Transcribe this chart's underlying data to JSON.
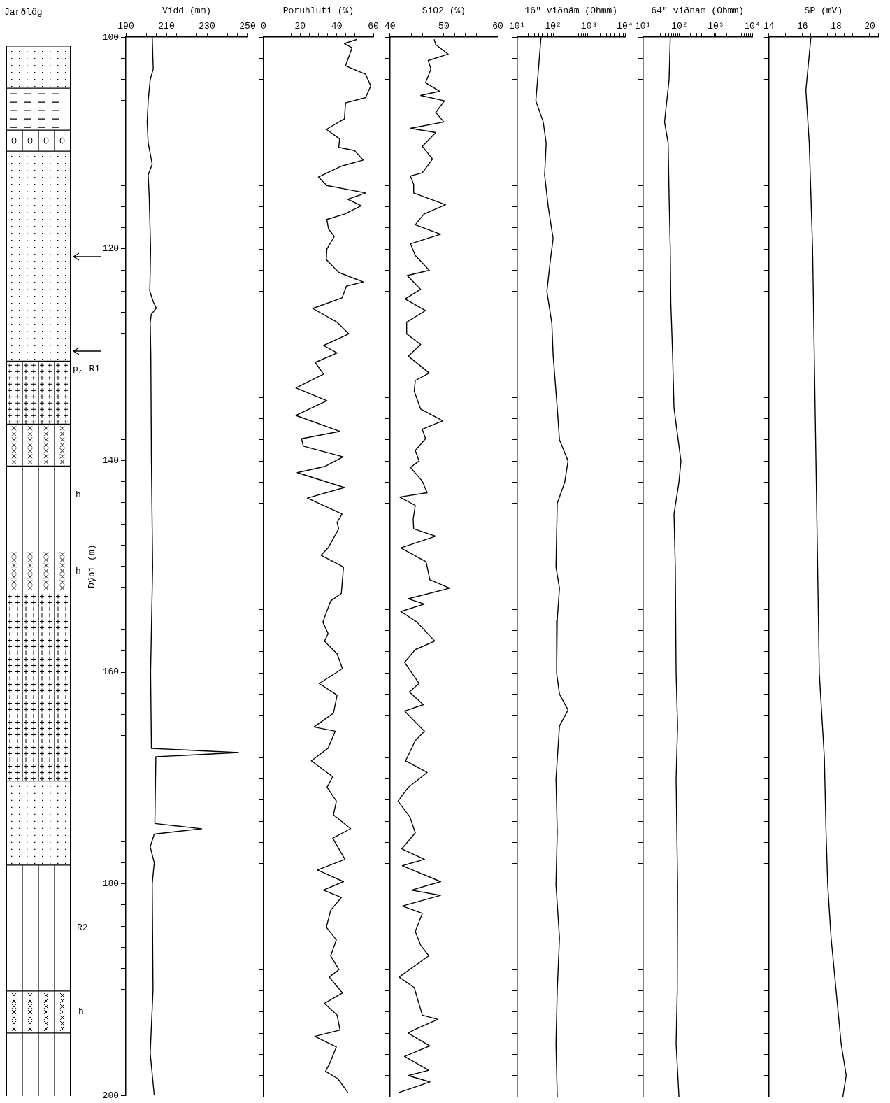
{
  "chart_data": [
    {
      "type": "other",
      "title": "Jarðlög",
      "annotations": [
        "p, R1",
        "h",
        "h",
        "R2",
        "h"
      ]
    },
    {
      "type": "line",
      "xlabel": "Vídd (mm)",
      "ylabel": "Dýpi (m)",
      "color": "#000000",
      "values": [
        100,
        103,
        104,
        106,
        108,
        110,
        112,
        113,
        115,
        120,
        124,
        125,
        125.6,
        126.2,
        127,
        130,
        140,
        150,
        160,
        167.2,
        167.6,
        168,
        174.3,
        174.8,
        175.3,
        176.5,
        178,
        180,
        190,
        196,
        200
      ],
      "x": [
        203,
        203.5,
        202,
        201,
        200.5,
        201,
        203,
        201,
        201.5,
        202.2,
        201.8,
        203.5,
        205,
        202.5,
        202,
        202.3,
        202.6,
        203.2,
        202.2,
        202.6,
        245.6,
        204.8,
        204.3,
        227.4,
        204,
        202,
        204,
        203,
        203.4,
        202,
        204
      ],
      "xlim": [
        190,
        250
      ],
      "xticks": [
        190,
        {
          "value": 195,
          "label": null
        },
        {
          "value": 200,
          "label": null
        },
        {
          "value": 205,
          "label": null
        },
        210,
        {
          "value": 215,
          "label": null
        },
        {
          "value": 220,
          "label": null
        },
        {
          "value": 225,
          "label": null
        },
        230,
        {
          "value": 235,
          "label": null
        },
        {
          "value": 240,
          "label": null
        },
        {
          "value": 245,
          "label": null
        },
        250
      ],
      "ylim": [
        200,
        100
      ],
      "yticks": [
        100,
        {
          "value": 102,
          "label": null
        },
        {
          "value": 104,
          "label": null
        },
        {
          "value": 106,
          "label": null
        },
        {
          "value": 108,
          "label": null
        },
        {
          "value": 110,
          "label": null
        },
        {
          "value": 112,
          "label": null
        },
        {
          "value": 114,
          "label": null
        },
        {
          "value": 116,
          "label": null
        },
        {
          "value": 118,
          "label": null
        },
        120,
        {
          "value": 122,
          "label": null
        },
        {
          "value": 124,
          "label": null
        },
        {
          "value": 126,
          "label": null
        },
        {
          "value": 128,
          "label": null
        },
        {
          "value": 130,
          "label": null
        },
        {
          "value": 132,
          "label": null
        },
        {
          "value": 134,
          "label": null
        },
        {
          "value": 136,
          "label": null
        },
        {
          "value": 138,
          "label": null
        },
        140,
        {
          "value": 142,
          "label": null
        },
        {
          "value": 144,
          "label": null
        },
        {
          "value": 146,
          "label": null
        },
        {
          "value": 148,
          "label": null
        },
        {
          "value": 150,
          "label": null
        },
        {
          "value": 152,
          "label": null
        },
        {
          "value": 154,
          "label": null
        },
        {
          "value": 156,
          "label": null
        },
        {
          "value": 158,
          "label": null
        },
        160,
        {
          "value": 162,
          "label": null
        },
        {
          "value": 164,
          "label": null
        },
        {
          "value": 166,
          "label": null
        },
        {
          "value": 168,
          "label": null
        },
        {
          "value": 170,
          "label": null
        },
        {
          "value": 172,
          "label": null
        },
        {
          "value": 174,
          "label": null
        },
        {
          "value": 176,
          "label": null
        },
        {
          "value": 178,
          "label": null
        },
        180,
        {
          "value": 182,
          "label": null
        },
        {
          "value": 184,
          "label": null
        },
        {
          "value": 186,
          "label": null
        },
        {
          "value": 188,
          "label": null
        },
        {
          "value": 190,
          "label": null
        },
        {
          "value": 192,
          "label": null
        },
        {
          "value": 194,
          "label": null
        },
        {
          "value": 196,
          "label": null
        },
        {
          "value": 198,
          "label": null
        },
        200
      ]
    },
    {
      "type": "line",
      "xlabel": "Poruhluti (%)",
      "color": "#000000",
      "tick_labels": "x",
      "values": [
        100.2,
        100.6,
        101,
        102.7,
        103.5,
        104.6,
        105.7,
        106.2,
        107.7,
        108.7,
        109.6,
        110.4,
        110.7,
        111.6,
        112.2,
        113.2,
        114,
        114.7,
        115.3,
        115.9,
        116.7,
        117.2,
        118.1,
        118.8,
        120,
        121,
        122.2,
        123.1,
        123.5,
        124.6,
        125.6,
        126.9,
        128,
        129.1,
        129.8,
        130.7,
        131.8,
        133.1,
        134.3,
        135.7,
        137.2,
        137.9,
        138.6,
        139.6,
        140.5,
        141.1,
        142.5,
        143.5,
        145,
        145.8,
        146.4,
        148.2,
        148.9,
        150,
        152.5,
        153.2,
        155.2,
        156.3,
        157,
        158.2,
        159.6,
        161,
        162.1,
        163.8,
        165.1,
        165.5,
        167.1,
        168.3,
        169.8,
        170.8,
        172.1,
        173.4,
        174.7,
        175.6,
        177.6,
        178.6,
        179.7,
        180.5,
        181.2,
        182.4,
        184,
        185.2,
        186.7,
        188,
        188.7,
        190.2,
        191.2,
        192.3,
        193.7,
        194.3,
        195.3,
        196.8,
        197.6,
        198.3,
        199.6
      ],
      "x": [
        51.2,
        44.2,
        48.4,
        44.8,
        55.8,
        58.6,
        55.8,
        44.8,
        44.2,
        34.3,
        41.6,
        41.1,
        49.7,
        54.5,
        42,
        30,
        34.6,
        55.8,
        46,
        53.4,
        44.2,
        34.6,
        35.5,
        38.7,
        34.6,
        34.3,
        41.1,
        54.5,
        45.3,
        42.9,
        26.9,
        40.2,
        46.6,
        32.8,
        40.2,
        28.2,
        32.8,
        17.7,
        34.6,
        17.7,
        41.6,
        20.8,
        21.7,
        43.5,
        33.7,
        18.4,
        44.2,
        23.9,
        42.9,
        40.2,
        41.1,
        35.3,
        31.4,
        43.7,
        42.5,
        36.7,
        32.4,
        35.3,
        33.3,
        40.2,
        43.1,
        30.4,
        40.2,
        38.2,
        27.5,
        39.2,
        35.3,
        26.1,
        37.8,
        34.7,
        39.8,
        38.2,
        47.6,
        37.8,
        44.5,
        29.4,
        43.7,
        32.7,
        42.5,
        36.7,
        34.3,
        39.8,
        36.7,
        41.2,
        35.9,
        43.1,
        33.3,
        40.2,
        41.8,
        28,
        39.8,
        36.3,
        33.9,
        40.6,
        46.1
      ],
      "xlim": [
        0,
        60
      ],
      "xticks": [
        0,
        {
          "value": 5,
          "label": null
        },
        {
          "value": 10,
          "label": null
        },
        {
          "value": 15,
          "label": null
        },
        20,
        {
          "value": 25,
          "label": null
        },
        {
          "value": 30,
          "label": null
        },
        {
          "value": 35,
          "label": null
        },
        40,
        {
          "value": 45,
          "label": null
        },
        {
          "value": 50,
          "label": null
        },
        {
          "value": 55,
          "label": null
        },
        60
      ],
      "ylim": [
        200,
        100
      ],
      "yticks": [
        100,
        {
          "value": 102,
          "label": null
        },
        {
          "value": 104,
          "label": null
        },
        {
          "value": 106,
          "label": null
        },
        {
          "value": 108,
          "label": null
        },
        {
          "value": 110,
          "label": null
        },
        {
          "value": 112,
          "label": null
        },
        {
          "value": 114,
          "label": null
        },
        {
          "value": 116,
          "label": null
        },
        {
          "value": 118,
          "label": null
        },
        120,
        {
          "value": 122,
          "label": null
        },
        {
          "value": 124,
          "label": null
        },
        {
          "value": 126,
          "label": null
        },
        {
          "value": 128,
          "label": null
        },
        {
          "value": 130,
          "label": null
        },
        {
          "value": 132,
          "label": null
        },
        {
          "value": 134,
          "label": null
        },
        {
          "value": 136,
          "label": null
        },
        {
          "value": 138,
          "label": null
        },
        140,
        {
          "value": 142,
          "label": null
        },
        {
          "value": 144,
          "label": null
        },
        {
          "value": 146,
          "label": null
        },
        {
          "value": 148,
          "label": null
        },
        {
          "value": 150,
          "label": null
        },
        {
          "value": 152,
          "label": null
        },
        {
          "value": 154,
          "label": null
        },
        {
          "value": 156,
          "label": null
        },
        {
          "value": 158,
          "label": null
        },
        160,
        {
          "value": 162,
          "label": null
        },
        {
          "value": 164,
          "label": null
        },
        {
          "value": 166,
          "label": null
        },
        {
          "value": 168,
          "label": null
        },
        {
          "value": 170,
          "label": null
        },
        {
          "value": 172,
          "label": null
        },
        {
          "value": 174,
          "label": null
        },
        {
          "value": 176,
          "label": null
        },
        {
          "value": 178,
          "label": null
        },
        180,
        {
          "value": 182,
          "label": null
        },
        {
          "value": 184,
          "label": null
        },
        {
          "value": 186,
          "label": null
        },
        {
          "value": 188,
          "label": null
        },
        {
          "value": 190,
          "label": null
        },
        {
          "value": 192,
          "label": null
        },
        {
          "value": 194,
          "label": null
        },
        {
          "value": 196,
          "label": null
        },
        {
          "value": 198,
          "label": null
        },
        200
      ]
    },
    {
      "type": "line",
      "xlabel": "SiO2 (%)",
      "color": "#000000",
      "tick_labels": "x",
      "values": [
        100.2,
        100.7,
        101.6,
        102.2,
        103,
        104.3,
        105.1,
        105.5,
        106,
        107.1,
        108,
        108.6,
        109,
        110.3,
        111.5,
        112.8,
        113.1,
        113.9,
        114.7,
        115.8,
        116.7,
        117.7,
        118.6,
        119.5,
        120.6,
        122,
        122.5,
        123.8,
        124.7,
        125.8,
        126.9,
        128,
        129,
        130.1,
        131.7,
        132.4,
        133.4,
        135.1,
        136.2,
        137,
        137.9,
        139,
        140,
        140.6,
        141.9,
        143,
        143.4,
        144.2,
        145.5,
        146.4,
        147.1,
        148.2,
        149.5,
        151.2,
        152,
        153,
        153.5,
        154.2,
        155.2,
        157,
        157.8,
        159,
        161,
        161.8,
        163,
        163.6,
        165.5,
        166.4,
        168.3,
        169.4,
        170.8,
        172.1,
        173.6,
        175.1,
        176.6,
        177.6,
        178.2,
        179.7,
        180.5,
        181,
        182,
        182.7,
        184.4,
        185.7,
        186.7,
        188.7,
        189.7,
        192.3,
        192.7,
        193.7,
        194,
        195.2,
        196.2,
        197.5,
        198,
        198.6,
        199.6
      ],
      "x": [
        48.2,
        48.5,
        50.8,
        47.1,
        47.6,
        46.6,
        49.2,
        45.7,
        50.1,
        48.5,
        50,
        43.8,
        48.5,
        46,
        47.9,
        46,
        43.8,
        44.4,
        44.4,
        50.3,
        46.3,
        44.7,
        49.4,
        43.8,
        44.7,
        47.3,
        43.2,
        45.7,
        42.8,
        46.6,
        43.1,
        43.1,
        45.7,
        43.4,
        47.3,
        44.7,
        44.5,
        45.7,
        49.8,
        46,
        46.6,
        44.7,
        45.4,
        43.8,
        46,
        46.9,
        41.8,
        44.7,
        44.3,
        44.4,
        48.5,
        42,
        46.7,
        47.4,
        51.1,
        43.4,
        46.4,
        42,
        45,
        48.3,
        44.7,
        42.7,
        45.4,
        43.6,
        46.2,
        42.7,
        46.4,
        44.7,
        42.9,
        46.9,
        43.4,
        41.5,
        43.7,
        44.7,
        42.2,
        46.4,
        42.3,
        49.4,
        44,
        49.4,
        42.3,
        46,
        44.7,
        45.7,
        47.2,
        41.7,
        44.5,
        46,
        48.9,
        44.4,
        43.4,
        47.4,
        42.7,
        47.2,
        43.4,
        47.4,
        41.7
      ],
      "xlim": [
        40,
        60
      ],
      "xticks": [
        40,
        {
          "value": 42,
          "label": null
        },
        {
          "value": 44,
          "label": null
        },
        {
          "value": 46,
          "label": null
        },
        {
          "value": 48,
          "label": null
        },
        50,
        {
          "value": 52,
          "label": null
        },
        {
          "value": 54,
          "label": null
        },
        {
          "value": 56,
          "label": null
        },
        {
          "value": 58,
          "label": null
        },
        60
      ],
      "ylim": [
        200,
        100
      ],
      "yticks": [
        100,
        {
          "value": 102,
          "label": null
        },
        {
          "value": 104,
          "label": null
        },
        {
          "value": 106,
          "label": null
        },
        {
          "value": 108,
          "label": null
        },
        {
          "value": 110,
          "label": null
        },
        {
          "value": 112,
          "label": null
        },
        {
          "value": 114,
          "label": null
        },
        {
          "value": 116,
          "label": null
        },
        {
          "value": 118,
          "label": null
        },
        120,
        {
          "value": 122,
          "label": null
        },
        {
          "value": 124,
          "label": null
        },
        {
          "value": 126,
          "label": null
        },
        {
          "value": 128,
          "label": null
        },
        {
          "value": 130,
          "label": null
        },
        {
          "value": 132,
          "label": null
        },
        {
          "value": 134,
          "label": null
        },
        {
          "value": 136,
          "label": null
        },
        {
          "value": 138,
          "label": null
        },
        140,
        {
          "value": 142,
          "label": null
        },
        {
          "value": 144,
          "label": null
        },
        {
          "value": 146,
          "label": null
        },
        {
          "value": 148,
          "label": null
        },
        {
          "value": 150,
          "label": null
        },
        {
          "value": 152,
          "label": null
        },
        {
          "value": 154,
          "label": null
        },
        {
          "value": 156,
          "label": null
        },
        {
          "value": 158,
          "label": null
        },
        160,
        {
          "value": 162,
          "label": null
        },
        {
          "value": 164,
          "label": null
        },
        {
          "value": 166,
          "label": null
        },
        {
          "value": 168,
          "label": null
        },
        {
          "value": 170,
          "label": null
        },
        {
          "value": 172,
          "label": null
        },
        {
          "value": 174,
          "label": null
        },
        {
          "value": 176,
          "label": null
        },
        {
          "value": 178,
          "label": null
        },
        180,
        {
          "value": 182,
          "label": null
        },
        {
          "value": 184,
          "label": null
        },
        {
          "value": 186,
          "label": null
        },
        {
          "value": 188,
          "label": null
        },
        {
          "value": 190,
          "label": null
        },
        {
          "value": 192,
          "label": null
        },
        {
          "value": 194,
          "label": null
        },
        {
          "value": 196,
          "label": null
        },
        {
          "value": 198,
          "label": null
        },
        200
      ]
    },
    {
      "type": "line",
      "xlabel": "16\" viðnám (Ohmm)",
      "color": "#000000",
      "tick_labels": "x",
      "log": "x",
      "values": [
        100,
        104,
        106,
        108,
        110,
        113,
        116,
        119,
        121,
        124,
        127,
        130,
        135,
        138,
        140,
        142,
        144,
        150,
        152,
        155,
        160,
        162,
        163.5,
        165,
        170,
        175,
        180,
        185,
        190,
        195,
        200
      ],
      "x": [
        46,
        37,
        33,
        53,
        64,
        58,
        73,
        100,
        84,
        67,
        92,
        100,
        130,
        150,
        260,
        210,
        130,
        120,
        150,
        130,
        125,
        150,
        260,
        150,
        120,
        130,
        120,
        150,
        130,
        120,
        130
      ],
      "xlim": [
        10,
        10000
      ],
      "xticks": [
        {
          "value": 10,
          "label": "10¹"
        },
        {
          "value": 20,
          "label": null
        },
        {
          "value": 30,
          "label": null
        },
        {
          "value": 40,
          "label": null
        },
        {
          "value": 50,
          "label": null
        },
        {
          "value": 60,
          "label": null
        },
        {
          "value": 70,
          "label": null
        },
        {
          "value": 80,
          "label": null
        },
        {
          "value": 90,
          "label": null
        },
        {
          "value": 100,
          "label": "10²"
        },
        {
          "value": 200,
          "label": null
        },
        {
          "value": 300,
          "label": null
        },
        {
          "value": 400,
          "label": null
        },
        {
          "value": 500,
          "label": null
        },
        {
          "value": 600,
          "label": null
        },
        {
          "value": 700,
          "label": null
        },
        {
          "value": 800,
          "label": null
        },
        {
          "value": 900,
          "label": null
        },
        {
          "value": 1000,
          "label": "10³"
        },
        {
          "value": 2000,
          "label": null
        },
        {
          "value": 3000,
          "label": null
        },
        {
          "value": 4000,
          "label": null
        },
        {
          "value": 5000,
          "label": null
        },
        {
          "value": 6000,
          "label": null
        },
        {
          "value": 7000,
          "label": null
        },
        {
          "value": 8000,
          "label": null
        },
        {
          "value": 9000,
          "label": null
        },
        {
          "value": 10000,
          "label": "10⁴"
        }
      ],
      "ylim": [
        200,
        100
      ],
      "yticks": [
        100,
        {
          "value": 102,
          "label": null
        },
        {
          "value": 104,
          "label": null
        },
        {
          "value": 106,
          "label": null
        },
        {
          "value": 108,
          "label": null
        },
        {
          "value": 110,
          "label": null
        },
        {
          "value": 112,
          "label": null
        },
        {
          "value": 114,
          "label": null
        },
        {
          "value": 116,
          "label": null
        },
        {
          "value": 118,
          "label": null
        },
        120,
        {
          "value": 122,
          "label": null
        },
        {
          "value": 124,
          "label": null
        },
        {
          "value": 126,
          "label": null
        },
        {
          "value": 128,
          "label": null
        },
        {
          "value": 130,
          "label": null
        },
        {
          "value": 132,
          "label": null
        },
        {
          "value": 134,
          "label": null
        },
        {
          "value": 136,
          "label": null
        },
        {
          "value": 138,
          "label": null
        },
        140,
        {
          "value": 142,
          "label": null
        },
        {
          "value": 144,
          "label": null
        },
        {
          "value": 146,
          "label": null
        },
        {
          "value": 148,
          "label": null
        },
        {
          "value": 150,
          "label": null
        },
        {
          "value": 152,
          "label": null
        },
        {
          "value": 154,
          "label": null
        },
        {
          "value": 156,
          "label": null
        },
        {
          "value": 158,
          "label": null
        },
        160,
        {
          "value": 162,
          "label": null
        },
        {
          "value": 164,
          "label": null
        },
        {
          "value": 166,
          "label": null
        },
        {
          "value": 168,
          "label": null
        },
        {
          "value": 170,
          "label": null
        },
        {
          "value": 172,
          "label": null
        },
        {
          "value": 174,
          "label": null
        },
        {
          "value": 176,
          "label": null
        },
        {
          "value": 178,
          "label": null
        },
        180,
        {
          "value": 182,
          "label": null
        },
        {
          "value": 184,
          "label": null
        },
        {
          "value": 186,
          "label": null
        },
        {
          "value": 188,
          "label": null
        },
        {
          "value": 190,
          "label": null
        },
        {
          "value": 192,
          "label": null
        },
        {
          "value": 194,
          "label": null
        },
        {
          "value": 196,
          "label": null
        },
        {
          "value": 198,
          "label": null
        },
        200
      ]
    },
    {
      "type": "line",
      "xlabel": "64\" viðnam (Ohmm)",
      "color": "#000000",
      "tick_labels": "x",
      "log": "x",
      "values": [
        100,
        104,
        108,
        110,
        115,
        120,
        125,
        130,
        135,
        140,
        142,
        145,
        150,
        160,
        165,
        170,
        180,
        190,
        195,
        200
      ],
      "x": [
        56,
        52,
        39,
        49,
        52,
        56,
        58,
        65,
        71,
        110,
        97,
        71,
        77,
        81,
        89,
        81,
        89,
        87,
        81,
        97
      ],
      "xlim": [
        10,
        10000
      ],
      "xticks": [
        {
          "value": 10,
          "label": "10¹"
        },
        {
          "value": 20,
          "label": null
        },
        {
          "value": 30,
          "label": null
        },
        {
          "value": 40,
          "label": null
        },
        {
          "value": 50,
          "label": null
        },
        {
          "value": 60,
          "label": null
        },
        {
          "value": 70,
          "label": null
        },
        {
          "value": 80,
          "label": null
        },
        {
          "value": 90,
          "label": null
        },
        {
          "value": 100,
          "label": "10²"
        },
        {
          "value": 200,
          "label": null
        },
        {
          "value": 300,
          "label": null
        },
        {
          "value": 400,
          "label": null
        },
        {
          "value": 500,
          "label": null
        },
        {
          "value": 600,
          "label": null
        },
        {
          "value": 700,
          "label": null
        },
        {
          "value": 800,
          "label": null
        },
        {
          "value": 900,
          "label": null
        },
        {
          "value": 1000,
          "label": "10³"
        },
        {
          "value": 2000,
          "label": null
        },
        {
          "value": 3000,
          "label": null
        },
        {
          "value": 4000,
          "label": null
        },
        {
          "value": 5000,
          "label": null
        },
        {
          "value": 6000,
          "label": null
        },
        {
          "value": 7000,
          "label": null
        },
        {
          "value": 8000,
          "label": null
        },
        {
          "value": 9000,
          "label": null
        },
        {
          "value": 10000,
          "label": "10⁴"
        }
      ],
      "ylim": [
        200,
        100
      ],
      "yticks": [
        100,
        {
          "value": 102,
          "label": null
        },
        {
          "value": 104,
          "label": null
        },
        {
          "value": 106,
          "label": null
        },
        {
          "value": 108,
          "label": null
        },
        {
          "value": 110,
          "label": null
        },
        {
          "value": 112,
          "label": null
        },
        {
          "value": 114,
          "label": null
        },
        {
          "value": 116,
          "label": null
        },
        {
          "value": 118,
          "label": null
        },
        120,
        {
          "value": 122,
          "label": null
        },
        {
          "value": 124,
          "label": null
        },
        {
          "value": 126,
          "label": null
        },
        {
          "value": 128,
          "label": null
        },
        {
          "value": 130,
          "label": null
        },
        {
          "value": 132,
          "label": null
        },
        {
          "value": 134,
          "label": null
        },
        {
          "value": 136,
          "label": null
        },
        {
          "value": 138,
          "label": null
        },
        140,
        {
          "value": 142,
          "label": null
        },
        {
          "value": 144,
          "label": null
        },
        {
          "value": 146,
          "label": null
        },
        {
          "value": 148,
          "label": null
        },
        {
          "value": 150,
          "label": null
        },
        {
          "value": 152,
          "label": null
        },
        {
          "value": 154,
          "label": null
        },
        {
          "value": 156,
          "label": null
        },
        {
          "value": 158,
          "label": null
        },
        160,
        {
          "value": 162,
          "label": null
        },
        {
          "value": 164,
          "label": null
        },
        {
          "value": 166,
          "label": null
        },
        {
          "value": 168,
          "label": null
        },
        {
          "value": 170,
          "label": null
        },
        {
          "value": 172,
          "label": null
        },
        {
          "value": 174,
          "label": null
        },
        {
          "value": 176,
          "label": null
        },
        {
          "value": 178,
          "label": null
        },
        180,
        {
          "value": 182,
          "label": null
        },
        {
          "value": 184,
          "label": null
        },
        {
          "value": 186,
          "label": null
        },
        {
          "value": 188,
          "label": null
        },
        {
          "value": 190,
          "label": null
        },
        {
          "value": 192,
          "label": null
        },
        {
          "value": 194,
          "label": null
        },
        {
          "value": 196,
          "label": null
        },
        {
          "value": 198,
          "label": null
        },
        200
      ]
    },
    {
      "type": "line",
      "xlabel": "SP (mV)",
      "color": "#000000",
      "tick_labels": "x",
      "values": [
        100,
        105,
        110,
        115,
        120,
        130,
        140,
        150,
        160,
        168,
        175,
        180,
        185,
        190,
        195,
        198,
        200
      ],
      "x": [
        16.5,
        16.2,
        16.4,
        16.5,
        16.6,
        16.7,
        16.8,
        16.9,
        17.0,
        17.3,
        17.4,
        17.5,
        17.7,
        18.0,
        18.3,
        18.6,
        18.4
      ],
      "xlim": [
        14,
        20.5
      ],
      "xticks": [
        14,
        {
          "value": 14.5,
          "label": null
        },
        {
          "value": 15,
          "label": null
        },
        {
          "value": 15.5,
          "label": null
        },
        16,
        {
          "value": 16.5,
          "label": null
        },
        {
          "value": 17,
          "label": null
        },
        {
          "value": 17.5,
          "label": null
        },
        18,
        {
          "value": 18.5,
          "label": null
        },
        {
          "value": 19,
          "label": null
        },
        {
          "value": 19.5,
          "label": null
        },
        20,
        {
          "value": 20.5,
          "label": null
        }
      ],
      "ylim": [
        200,
        100
      ],
      "yticks": [
        100,
        {
          "value": 102,
          "label": null
        },
        {
          "value": 104,
          "label": null
        },
        {
          "value": 106,
          "label": null
        },
        {
          "value": 108,
          "label": null
        },
        {
          "value": 110,
          "label": null
        },
        {
          "value": 112,
          "label": null
        },
        {
          "value": 114,
          "label": null
        },
        {
          "value": 116,
          "label": null
        },
        {
          "value": 118,
          "label": null
        },
        120,
        {
          "value": 122,
          "label": null
        },
        {
          "value": 124,
          "label": null
        },
        {
          "value": 126,
          "label": null
        },
        {
          "value": 128,
          "label": null
        },
        {
          "value": 130,
          "label": null
        },
        {
          "value": 132,
          "label": null
        },
        {
          "value": 134,
          "label": null
        },
        {
          "value": 136,
          "label": null
        },
        {
          "value": 138,
          "label": null
        },
        140,
        {
          "value": 142,
          "label": null
        },
        {
          "value": 144,
          "label": null
        },
        {
          "value": 146,
          "label": null
        },
        {
          "value": 148,
          "label": null
        },
        {
          "value": 150,
          "label": null
        },
        {
          "value": 152,
          "label": null
        },
        {
          "value": 154,
          "label": null
        },
        {
          "value": 156,
          "label": null
        },
        {
          "value": 158,
          "label": null
        },
        160,
        {
          "value": 162,
          "label": null
        },
        {
          "value": 164,
          "label": null
        },
        {
          "value": 166,
          "label": null
        },
        {
          "value": 168,
          "label": null
        },
        {
          "value": 170,
          "label": null
        },
        {
          "value": 172,
          "label": null
        },
        {
          "value": 174,
          "label": null
        },
        {
          "value": 176,
          "label": null
        },
        {
          "value": 178,
          "label": null
        },
        180,
        {
          "value": 182,
          "label": null
        },
        {
          "value": 184,
          "label": null
        },
        {
          "value": 186,
          "label": null
        },
        {
          "value": 188,
          "label": null
        },
        {
          "value": 190,
          "label": null
        },
        {
          "value": 192,
          "label": null
        },
        {
          "value": 194,
          "label": null
        },
        {
          "value": 196,
          "label": null
        },
        {
          "value": 198,
          "label": null
        },
        200
      ]
    }
  ]
}
